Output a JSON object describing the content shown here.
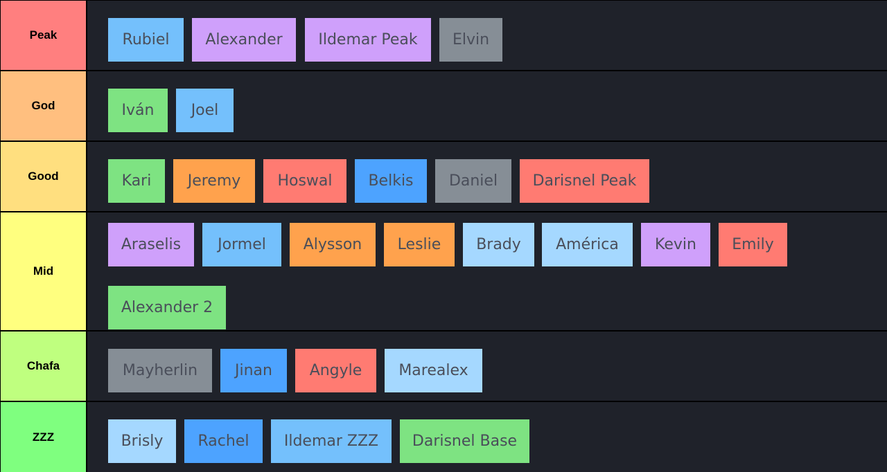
{
  "palette": {
    "blue": "#74c0fc",
    "purple": "#cfa0fb",
    "gray": "#868e96",
    "green": "#7ee382",
    "orange": "#ffa24d",
    "red": "#ff7b72",
    "deep_blue": "#4da3ff",
    "pale_blue": "#a5d8ff",
    "row_background": "#1f222a",
    "divider": "#000000"
  },
  "tiers": [
    {
      "label": "Peak",
      "color": "#ff7f7f",
      "items": [
        {
          "name": "Rubiel",
          "color": "#74c0fc"
        },
        {
          "name": "Alexander",
          "color": "#cfa0fb"
        },
        {
          "name": "Ildemar Peak",
          "color": "#cfa0fb"
        },
        {
          "name": "Elvin",
          "color": "#868e96"
        }
      ]
    },
    {
      "label": "God",
      "color": "#ffbf7f",
      "items": [
        {
          "name": "Iván",
          "color": "#7ee382"
        },
        {
          "name": "Joel",
          "color": "#74c0fc"
        }
      ]
    },
    {
      "label": "Good",
      "color": "#ffdf7f",
      "items": [
        {
          "name": "Kari",
          "color": "#7ee382"
        },
        {
          "name": "Jeremy",
          "color": "#ffa24d"
        },
        {
          "name": "Hoswal",
          "color": "#ff7b72"
        },
        {
          "name": "Belkis",
          "color": "#4da3ff"
        },
        {
          "name": "Daniel",
          "color": "#868e96"
        },
        {
          "name": "Darisnel Peak",
          "color": "#ff7b72"
        }
      ]
    },
    {
      "label": "Mid",
      "color": "#ffff7f",
      "items": [
        {
          "name": "Araselis",
          "color": "#cfa0fb"
        },
        {
          "name": "Jormel",
          "color": "#74c0fc"
        },
        {
          "name": "Alysson",
          "color": "#ffa24d"
        },
        {
          "name": "Leslie",
          "color": "#ffa24d"
        },
        {
          "name": "Brady",
          "color": "#a5d8ff"
        },
        {
          "name": "América",
          "color": "#a5d8ff"
        },
        {
          "name": "Kevin",
          "color": "#cfa0fb"
        },
        {
          "name": "Emily",
          "color": "#ff7b72"
        },
        {
          "name": "Alexander 2",
          "color": "#7ee382"
        }
      ]
    },
    {
      "label": "Chafa",
      "color": "#bfff7f",
      "items": [
        {
          "name": "Mayherlin",
          "color": "#868e96"
        },
        {
          "name": "Jinan",
          "color": "#4da3ff"
        },
        {
          "name": "Angyle",
          "color": "#ff7b72"
        },
        {
          "name": "Marealex",
          "color": "#a5d8ff"
        }
      ]
    },
    {
      "label": "ZZZ",
      "color": "#7fff7f",
      "items": [
        {
          "name": "Brisly",
          "color": "#a5d8ff"
        },
        {
          "name": "Rachel",
          "color": "#4da3ff"
        },
        {
          "name": "Ildemar ZZZ",
          "color": "#74c0fc"
        },
        {
          "name": "Darisnel Base",
          "color": "#7ee382"
        }
      ]
    }
  ]
}
